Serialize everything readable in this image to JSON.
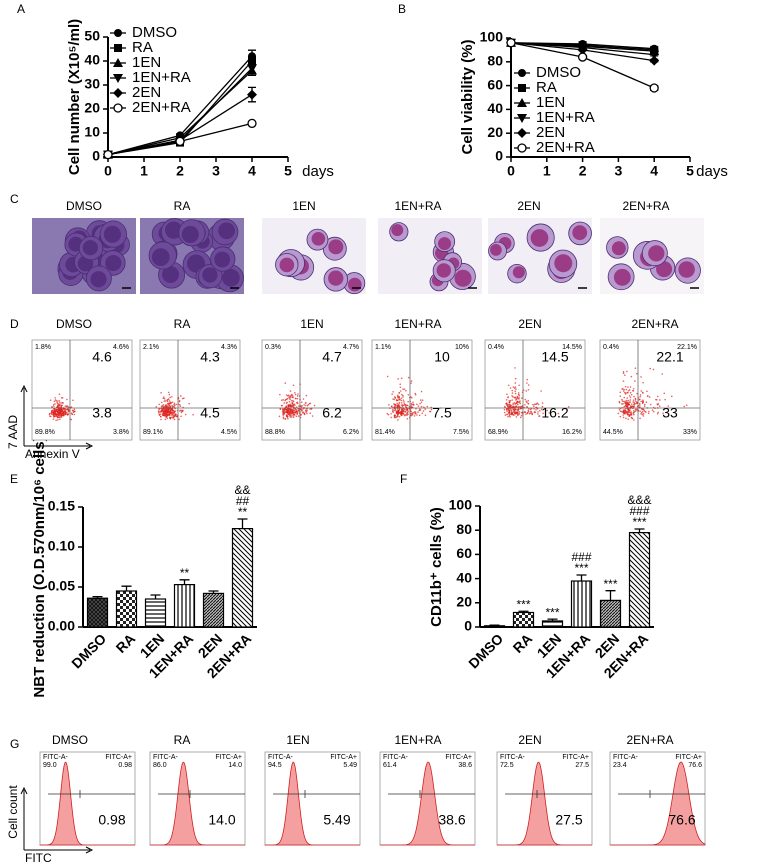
{
  "panel_labels": [
    "A",
    "B",
    "C",
    "D",
    "E",
    "F",
    "G"
  ],
  "chart_data": [
    {
      "type": "line",
      "x_label": "days",
      "y_label": "Cell number (X10⁵/ml)",
      "x": [
        0,
        2,
        4
      ],
      "xlim": [
        0,
        5
      ],
      "xticks": [
        0,
        1,
        2,
        3,
        4,
        5
      ],
      "ylim": [
        0,
        50
      ],
      "yticks": [
        0,
        10,
        20,
        30,
        40,
        50
      ],
      "series": [
        {
          "name": "DMSO",
          "color": "#000000",
          "marker": "circle",
          "values": [
            1,
            9,
            42
          ],
          "errors": [
            0.3,
            0.6,
            2.5
          ]
        },
        {
          "name": "RA",
          "color": "#000000",
          "marker": "square",
          "values": [
            1,
            6,
            40
          ],
          "errors": [
            0.3,
            0.5,
            2
          ]
        },
        {
          "name": "1EN",
          "color": "#000000",
          "marker": "triangle-up",
          "values": [
            1,
            8,
            36
          ],
          "errors": [
            0.3,
            0.5,
            2
          ]
        },
        {
          "name": "1EN+RA",
          "color": "#000000",
          "marker": "triangle-down",
          "values": [
            1,
            7,
            37
          ],
          "errors": [
            0.3,
            0.5,
            2
          ]
        },
        {
          "name": "2EN",
          "color": "#000000",
          "marker": "diamond",
          "values": [
            1,
            7,
            26
          ],
          "errors": [
            0.3,
            0.5,
            3
          ]
        },
        {
          "name": "2EN+RA",
          "color": "#000000",
          "marker": "open-circle",
          "values": [
            1,
            6.5,
            14
          ],
          "errors": [
            0.3,
            0.5,
            0.5
          ]
        }
      ]
    },
    {
      "type": "line",
      "x_label": "days",
      "y_label": "Cell viability (%)",
      "x": [
        0,
        2,
        4
      ],
      "xlim": [
        0,
        5
      ],
      "xticks": [
        0,
        1,
        2,
        3,
        4,
        5
      ],
      "ylim": [
        0,
        100
      ],
      "yticks": [
        0,
        20,
        40,
        60,
        80,
        100
      ],
      "series": [
        {
          "name": "DMSO",
          "color": "#000000",
          "marker": "circle",
          "values": [
            96,
            95,
            91
          ],
          "errors": [
            0.5,
            0.5,
            1
          ]
        },
        {
          "name": "RA",
          "color": "#000000",
          "marker": "square",
          "values": [
            96,
            94,
            90
          ],
          "errors": [
            0.5,
            0.5,
            1
          ]
        },
        {
          "name": "1EN",
          "color": "#000000",
          "marker": "triangle-up",
          "values": [
            96,
            93,
            89
          ],
          "errors": [
            0.5,
            0.5,
            1
          ]
        },
        {
          "name": "1EN+RA",
          "color": "#000000",
          "marker": "triangle-down",
          "values": [
            96,
            92,
            86
          ],
          "errors": [
            0.5,
            0.5,
            1
          ]
        },
        {
          "name": "2EN",
          "color": "#000000",
          "marker": "diamond",
          "values": [
            96,
            90,
            81
          ],
          "errors": [
            0.5,
            0.5,
            1
          ]
        },
        {
          "name": "2EN+RA",
          "color": "#000000",
          "marker": "open-circle",
          "values": [
            96,
            84,
            58
          ],
          "errors": [
            0.5,
            1,
            2
          ]
        }
      ]
    },
    {
      "type": "bar",
      "y_label": "NBT reduction (O.D.570nm/10⁶ cells)",
      "categories": [
        "DMSO",
        "RA",
        "1EN",
        "1EN+RA",
        "2EN",
        "2EN+RA"
      ],
      "values": [
        0.036,
        0.045,
        0.035,
        0.053,
        0.042,
        0.123
      ],
      "errors": [
        0.002,
        0.006,
        0.005,
        0.006,
        0.003,
        0.012
      ],
      "patterns": [
        "crosshatch",
        "checker",
        "horizontal",
        "vertical",
        "dense-diagonal",
        "diagonal"
      ],
      "annotations": [
        [],
        [],
        [],
        [
          "**"
        ],
        [],
        [
          "&&",
          "##",
          "**"
        ]
      ],
      "ylim": [
        0,
        0.15
      ],
      "yticks": [
        {
          "value": 0,
          "label": "0.00"
        },
        {
          "value": 0.05,
          "label": "0.05"
        },
        {
          "value": 0.1,
          "label": "0.10"
        },
        {
          "value": 0.15,
          "label": "0.15"
        }
      ]
    },
    {
      "type": "bar",
      "y_label": "CD11b⁺ cells (%)",
      "categories": [
        "DMSO",
        "RA",
        "1EN",
        "1EN+RA",
        "2EN",
        "2EN+RA"
      ],
      "values": [
        1,
        12,
        5,
        38,
        22,
        78
      ],
      "errors": [
        0.5,
        1,
        1.5,
        5,
        8,
        3
      ],
      "patterns": [
        "crosshatch",
        "checker",
        "horizontal",
        "vertical",
        "dense-diagonal",
        "diagonal"
      ],
      "annotations": [
        [],
        [
          "***"
        ],
        [
          "***"
        ],
        [
          "###",
          "***"
        ],
        [
          "***"
        ],
        [
          "&&&",
          "###",
          "***"
        ]
      ],
      "ylim": [
        0,
        100
      ],
      "yticks": [
        0,
        20,
        40,
        60,
        80,
        100
      ]
    }
  ],
  "micrographs": {
    "labels": [
      "DMSO",
      "RA",
      "1EN",
      "1EN+RA",
      "2EN",
      "2EN+RA"
    ]
  },
  "apoptosis": {
    "y_label": "7 AAD",
    "x_label": "Annexin V",
    "plots": [
      {
        "label": "DMSO",
        "ul": "1.8%",
        "ur": "4.6%",
        "ll": "89.8%",
        "lr": "3.8%",
        "ur_big": "4.6",
        "lr_big": "3.8"
      },
      {
        "label": "RA",
        "ul": "2.1%",
        "ur": "4.3%",
        "ll": "89.1%",
        "lr": "4.5%",
        "ur_big": "4.3",
        "lr_big": "4.5"
      },
      {
        "label": "1EN",
        "ul": "0.3%",
        "ur": "4.7%",
        "ll": "88.8%",
        "lr": "6.2%",
        "ur_big": "4.7",
        "lr_big": "6.2"
      },
      {
        "label": "1EN+RA",
        "ul": "1.1%",
        "ur": "10%",
        "ll": "81.4%",
        "lr": "7.5%",
        "ur_big": "10",
        "lr_big": "7.5"
      },
      {
        "label": "2EN",
        "ul": "0.4%",
        "ur": "14.5%",
        "ll": "68.9%",
        "lr": "16.2%",
        "ur_big": "14.5",
        "lr_big": "16.2"
      },
      {
        "label": "2EN+RA",
        "ul": "0.4%",
        "ur": "22.1%",
        "ll": "44.5%",
        "lr": "33%",
        "ur_big": "22.1",
        "lr_big": "33"
      }
    ]
  },
  "fitc": {
    "y_label": "Cell count",
    "x_label": "FITC",
    "neg_gate": "FITC-A-",
    "pos_gate": "FITC-A+",
    "plots": [
      {
        "label": "DMSO",
        "neg": "99.0",
        "pos": "0.98",
        "big": "0.98"
      },
      {
        "label": "RA",
        "neg": "86.0",
        "pos": "14.0",
        "big": "14.0"
      },
      {
        "label": "1EN",
        "neg": "94.5",
        "pos": "5.49",
        "big": "5.49"
      },
      {
        "label": "1EN+RA",
        "neg": "61.4",
        "pos": "38.6",
        "big": "38.6"
      },
      {
        "label": "2EN",
        "neg": "72.5",
        "pos": "27.5",
        "big": "27.5"
      },
      {
        "label": "2EN+RA",
        "neg": "23.4",
        "pos": "76.6",
        "big": "76.6"
      }
    ]
  }
}
